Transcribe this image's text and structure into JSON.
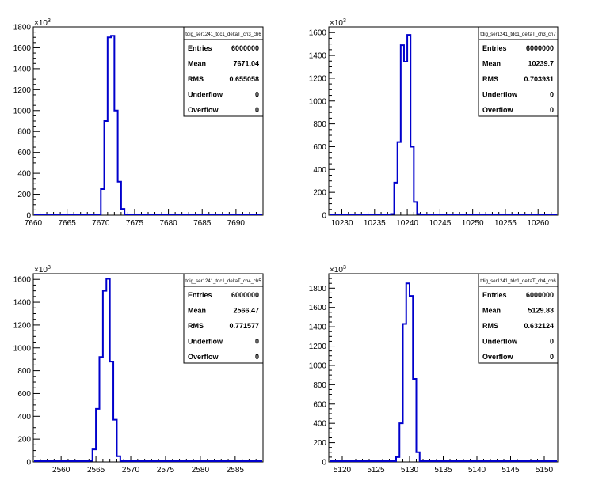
{
  "chart_data": [
    {
      "type": "histogram",
      "title": "",
      "xlabel": "",
      "ylabel": "",
      "y_exponent_label": "×10",
      "y_exponent_power": "3",
      "xlim": [
        7660,
        7694
      ],
      "ylim": [
        0,
        1800
      ],
      "x_ticks": [
        7660,
        7665,
        7670,
        7675,
        7680,
        7685,
        7690
      ],
      "y_ticks": [
        0,
        200,
        400,
        600,
        800,
        1000,
        1200,
        1400,
        1600,
        1800
      ],
      "bin_width": 0.5,
      "bins": [
        [
          7669.5,
          5
        ],
        [
          7670.0,
          250
        ],
        [
          7670.5,
          900
        ],
        [
          7671.0,
          1700
        ],
        [
          7671.5,
          1715
        ],
        [
          7672.0,
          1000
        ],
        [
          7672.5,
          320
        ],
        [
          7673.0,
          60
        ],
        [
          7673.5,
          5
        ]
      ],
      "line_color": "#0000cc",
      "stats": {
        "name": "tdig_ser1241_tdc1_deltaT_ch3_ch6",
        "rows": [
          {
            "label": "Entries",
            "value": "6000000"
          },
          {
            "label": "Mean",
            "value": "7671.04"
          },
          {
            "label": "RMS",
            "value": "0.655058"
          },
          {
            "label": "Underflow",
            "value": "0"
          },
          {
            "label": "Overflow",
            "value": "0"
          }
        ]
      }
    },
    {
      "type": "histogram",
      "title": "",
      "xlabel": "",
      "ylabel": "",
      "y_exponent_label": "×10",
      "y_exponent_power": "3",
      "xlim": [
        10228,
        10263
      ],
      "ylim": [
        0,
        1650
      ],
      "x_ticks": [
        10230,
        10235,
        10240,
        10245,
        10250,
        10255,
        10260
      ],
      "y_ticks": [
        0,
        200,
        400,
        600,
        800,
        1000,
        1200,
        1400,
        1600
      ],
      "bin_width": 0.5,
      "bins": [
        [
          10237.5,
          10
        ],
        [
          10238.0,
          285
        ],
        [
          10238.5,
          640
        ],
        [
          10239.0,
          1490
        ],
        [
          10239.5,
          1345
        ],
        [
          10240.0,
          1580
        ],
        [
          10240.5,
          600
        ],
        [
          10241.0,
          115
        ],
        [
          10241.5,
          10
        ]
      ],
      "line_color": "#0000cc",
      "stats": {
        "name": "tdig_ser1241_tdc1_deltaT_ch3_ch7",
        "rows": [
          {
            "label": "Entries",
            "value": "6000000"
          },
          {
            "label": "Mean",
            "value": "10239.7"
          },
          {
            "label": "RMS",
            "value": "0.703931"
          },
          {
            "label": "Underflow",
            "value": "0"
          },
          {
            "label": "Overflow",
            "value": "0"
          }
        ]
      }
    },
    {
      "type": "histogram",
      "title": "",
      "xlabel": "",
      "ylabel": "",
      "y_exponent_label": "×10",
      "y_exponent_power": "3",
      "xlim": [
        2556,
        2589
      ],
      "ylim": [
        0,
        1650
      ],
      "x_ticks": [
        2560,
        2565,
        2570,
        2575,
        2580,
        2585
      ],
      "y_ticks": [
        0,
        200,
        400,
        600,
        800,
        1000,
        1200,
        1400,
        1600
      ],
      "bin_width": 0.5,
      "bins": [
        [
          2563.5,
          5
        ],
        [
          2564.0,
          10
        ],
        [
          2564.5,
          110
        ],
        [
          2565.0,
          465
        ],
        [
          2565.5,
          920
        ],
        [
          2566.0,
          1500
        ],
        [
          2566.5,
          1605
        ],
        [
          2567.0,
          880
        ],
        [
          2567.5,
          370
        ],
        [
          2568.0,
          50
        ],
        [
          2568.5,
          8
        ]
      ],
      "line_color": "#0000cc",
      "stats": {
        "name": "tdig_ser1241_tdc1_deltaT_ch4_ch5",
        "rows": [
          {
            "label": "Entries",
            "value": "6000000"
          },
          {
            "label": "Mean",
            "value": "2566.47"
          },
          {
            "label": "RMS",
            "value": "0.771577"
          },
          {
            "label": "Underflow",
            "value": "0"
          },
          {
            "label": "Overflow",
            "value": "0"
          }
        ]
      }
    },
    {
      "type": "histogram",
      "title": "",
      "xlabel": "",
      "ylabel": "",
      "y_exponent_label": "×10",
      "y_exponent_power": "3",
      "xlim": [
        5118,
        5152
      ],
      "ylim": [
        0,
        1950
      ],
      "x_ticks": [
        5120,
        5125,
        5130,
        5135,
        5140,
        5145,
        5150
      ],
      "y_ticks": [
        0,
        200,
        400,
        600,
        800,
        1000,
        1200,
        1400,
        1600,
        1800
      ],
      "bin_width": 0.5,
      "bins": [
        [
          5128.0,
          50
        ],
        [
          5128.5,
          400
        ],
        [
          5129.0,
          1430
        ],
        [
          5129.5,
          1850
        ],
        [
          5130.0,
          1720
        ],
        [
          5130.5,
          860
        ],
        [
          5131.0,
          100
        ],
        [
          5131.5,
          5
        ]
      ],
      "line_color": "#0000cc",
      "stats": {
        "name": "tdig_ser1241_tdc1_deltaT_ch4_ch6",
        "rows": [
          {
            "label": "Entries",
            "value": "6000000"
          },
          {
            "label": "Mean",
            "value": "5129.83"
          },
          {
            "label": "RMS",
            "value": "0.632124"
          },
          {
            "label": "Underflow",
            "value": "0"
          },
          {
            "label": "Overflow",
            "value": "0"
          }
        ]
      }
    }
  ]
}
